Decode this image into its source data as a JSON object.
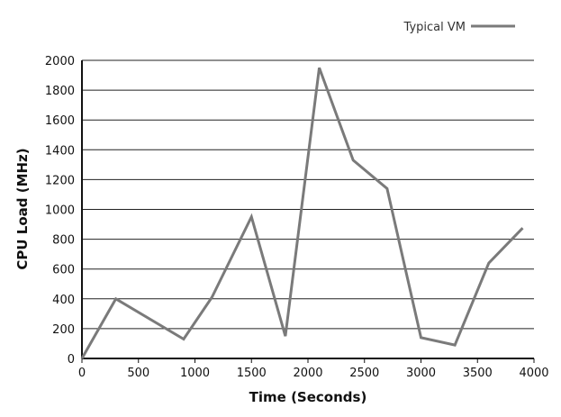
{
  "chart_data": {
    "type": "line",
    "title": "",
    "xlabel": "Time (Seconds)",
    "ylabel": "CPU Load (MHz)",
    "xlim": [
      0,
      4000
    ],
    "ylim": [
      0,
      2000
    ],
    "xticks": [
      0,
      500,
      1000,
      1500,
      2000,
      2500,
      3000,
      3500,
      4000
    ],
    "yticks": [
      0,
      200,
      400,
      600,
      800,
      1000,
      1200,
      1400,
      1600,
      1800,
      2000
    ],
    "grid": "horizontal",
    "legend_position": "top-right",
    "series": [
      {
        "name": "Typical VM",
        "color": "#7a7a7a",
        "x": [
          0,
          300,
          900,
          1150,
          1500,
          1800,
          2100,
          2400,
          2700,
          3000,
          3300,
          3600,
          3900
        ],
        "y": [
          0,
          400,
          130,
          410,
          950,
          150,
          1950,
          1330,
          1140,
          140,
          90,
          640,
          875
        ]
      }
    ]
  }
}
